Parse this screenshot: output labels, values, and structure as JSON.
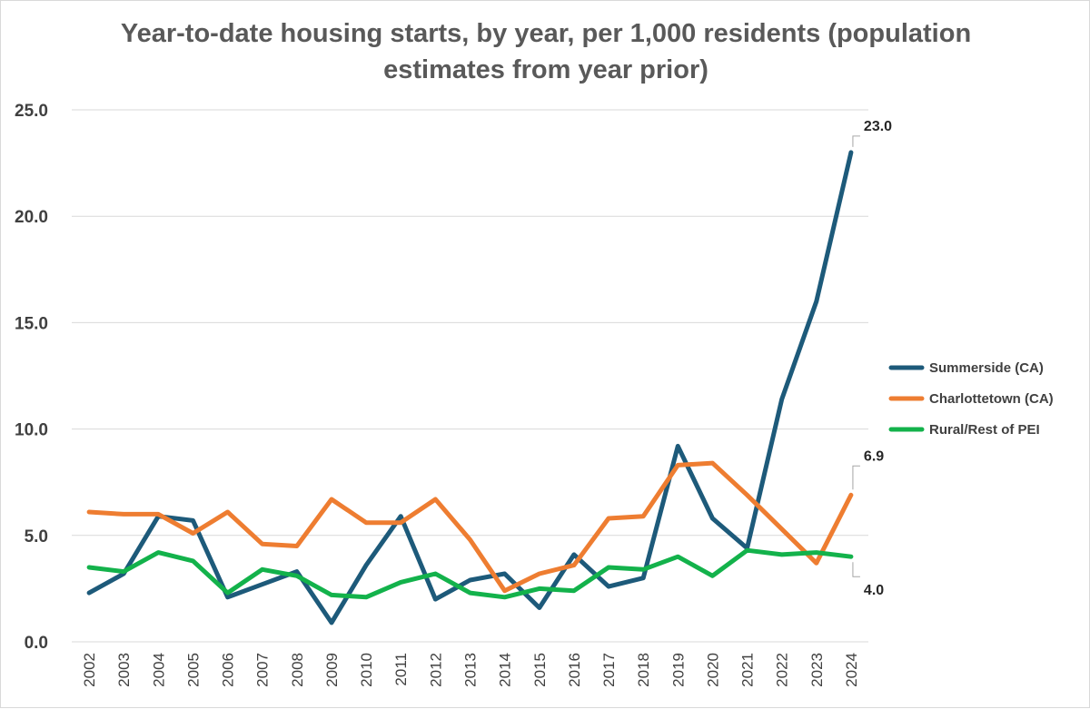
{
  "chart_data": {
    "type": "line",
    "title_lines": [
      "Year-to-date housing starts, by year, per 1,000 residents (population",
      "estimates from year prior)"
    ],
    "xlabel": "",
    "ylabel": "",
    "ylim": [
      0,
      25
    ],
    "yticks": [
      0,
      5,
      10,
      15,
      20,
      25
    ],
    "ytick_labels": [
      "0.0",
      "5.0",
      "10.0",
      "15.0",
      "20.0",
      "25.0"
    ],
    "grid": true,
    "legend_position": "right",
    "categories": [
      "2002",
      "2003",
      "2004",
      "2005",
      "2006",
      "2007",
      "2008",
      "2009",
      "2010",
      "2011",
      "2012",
      "2013",
      "2014",
      "2015",
      "2016",
      "2017",
      "2018",
      "2019",
      "2020",
      "2021",
      "2022",
      "2023",
      "2024"
    ],
    "series": [
      {
        "name": "Summerside (CA)",
        "color": "#1d5a7a",
        "values": [
          2.3,
          3.2,
          5.9,
          5.7,
          2.1,
          2.7,
          3.3,
          0.9,
          3.6,
          5.9,
          2.0,
          2.9,
          3.2,
          1.6,
          4.1,
          2.6,
          3.0,
          9.2,
          5.8,
          4.4,
          11.4,
          16.0,
          23.0
        ],
        "end_label": "23.0"
      },
      {
        "name": "Charlottetown (CA)",
        "color": "#ee7d31",
        "values": [
          6.1,
          6.0,
          6.0,
          5.1,
          6.1,
          4.6,
          4.5,
          6.7,
          5.6,
          5.6,
          6.7,
          4.8,
          2.4,
          3.2,
          3.6,
          5.8,
          5.9,
          8.3,
          8.4,
          6.9,
          5.3,
          3.7,
          6.9
        ],
        "end_label": "6.9"
      },
      {
        "name": "Rural/Rest of PEI",
        "color": "#13b24b",
        "values": [
          3.5,
          3.3,
          4.2,
          3.8,
          2.3,
          3.4,
          3.1,
          2.2,
          2.1,
          2.8,
          3.2,
          2.3,
          2.1,
          2.5,
          2.4,
          3.5,
          3.4,
          4.0,
          3.1,
          4.3,
          4.1,
          4.2,
          4.0
        ],
        "end_label": "4.0"
      }
    ]
  }
}
